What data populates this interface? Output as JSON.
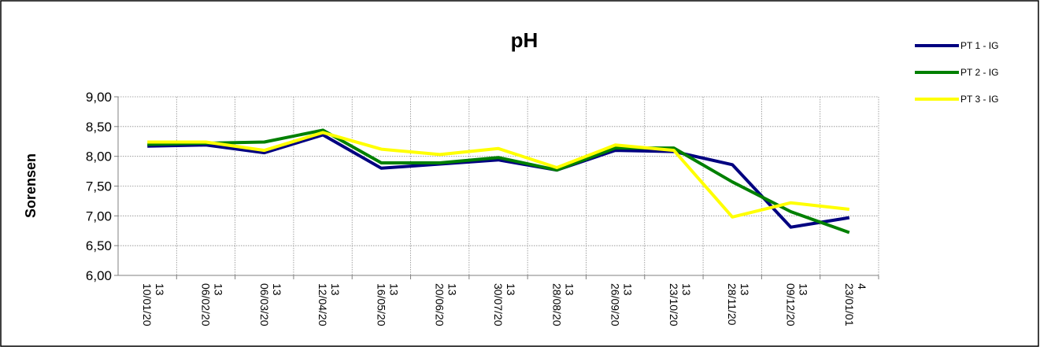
{
  "chart_data": {
    "type": "line",
    "title": "pH",
    "ylabel": "Sorensen",
    "xlabel": "",
    "ylim": [
      6.0,
      9.0
    ],
    "y_ticks": [
      "6,00",
      "6,50",
      "7,00",
      "7,50",
      "8,00",
      "8,50",
      "9,00"
    ],
    "y_tick_values": [
      6.0,
      6.5,
      7.0,
      7.5,
      8.0,
      8.5,
      9.0
    ],
    "grid": true,
    "legend_position": "top-right",
    "categories": [
      [
        "10/01/20",
        "13"
      ],
      [
        "06/02/20",
        "13"
      ],
      [
        "06/03/20",
        "13"
      ],
      [
        "12/04/20",
        "13"
      ],
      [
        "16/05/20",
        "13"
      ],
      [
        "20/06/20",
        "13"
      ],
      [
        "30/07/20",
        "13"
      ],
      [
        "28/08/20",
        "13"
      ],
      [
        "26/09/20",
        "13"
      ],
      [
        "23/10/20",
        "13"
      ],
      [
        "28/11/20",
        "13"
      ],
      [
        "09/12/20",
        "13"
      ],
      [
        "23/01/01",
        "4"
      ]
    ],
    "series": [
      {
        "name": "PT 1 - IG",
        "color": "#000080",
        "values": [
          8.17,
          8.19,
          8.06,
          8.36,
          7.8,
          7.87,
          7.94,
          7.77,
          8.1,
          8.08,
          7.86,
          6.81,
          6.97
        ]
      },
      {
        "name": "PT 2 - IG",
        "color": "#008000",
        "values": [
          8.2,
          8.22,
          8.24,
          8.44,
          7.89,
          7.89,
          7.98,
          7.77,
          8.14,
          8.14,
          7.57,
          7.07,
          6.72
        ]
      },
      {
        "name": "PT 3 - IG",
        "color": "#FFFF00",
        "values": [
          8.24,
          8.24,
          8.1,
          8.4,
          8.12,
          8.03,
          8.13,
          7.81,
          8.19,
          8.1,
          6.98,
          7.22,
          7.11
        ]
      }
    ]
  }
}
